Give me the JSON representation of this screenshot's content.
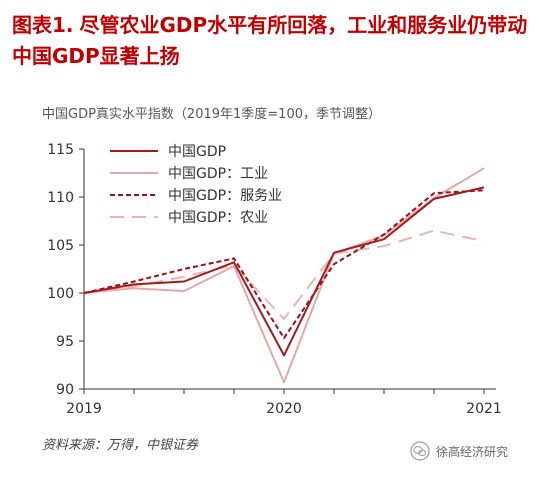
{
  "title": {
    "prefix": "图表1.",
    "text": "尽管农业GDP水平有所回落，工业和服务业仍带动中国GDP显著上扬"
  },
  "source": "资料来源：万得，中银证券",
  "watermark": "徐高经济研究",
  "chart_data": {
    "type": "line",
    "title": "中国GDP真实水平指数（2019年1季度=100，季节调整）",
    "xlabel": "",
    "ylabel": "",
    "x": [
      "2019Q1",
      "2019Q2",
      "2019Q3",
      "2019Q4",
      "2020Q1",
      "2020Q2",
      "2020Q3",
      "2020Q4",
      "2021Q1"
    ],
    "x_ticks": [
      {
        "label": "2019",
        "index": 0
      },
      {
        "label": "2020",
        "index": 4
      },
      {
        "label": "2021",
        "index": 8
      }
    ],
    "ylim": [
      90,
      115
    ],
    "yticks": [
      90,
      95,
      100,
      105,
      110,
      115
    ],
    "grid": false,
    "legend": "top-left",
    "series": [
      {
        "name": "中国GDP",
        "color": "#a31a1f",
        "dash": "solid",
        "values": [
          100,
          100.9,
          101.2,
          103.2,
          93.5,
          104.2,
          105.6,
          109.8,
          111.0
        ]
      },
      {
        "name": "中国GDP：工业",
        "color": "#e3a9a6",
        "dash": "solid",
        "values": [
          100,
          100.5,
          100.2,
          102.8,
          90.7,
          104.1,
          106.0,
          109.9,
          113.0
        ]
      },
      {
        "name": "中国GDP：服务业",
        "color": "#9b1015",
        "dash": "short",
        "values": [
          100,
          101.2,
          102.5,
          103.6,
          95.3,
          103.0,
          106.1,
          110.4,
          110.7
        ]
      },
      {
        "name": "中国GDP：农业",
        "color": "#eab3b0",
        "dash": "long",
        "values": [
          100,
          100.7,
          101.7,
          102.9,
          97.3,
          104.1,
          104.9,
          106.5,
          105.4
        ]
      }
    ]
  }
}
